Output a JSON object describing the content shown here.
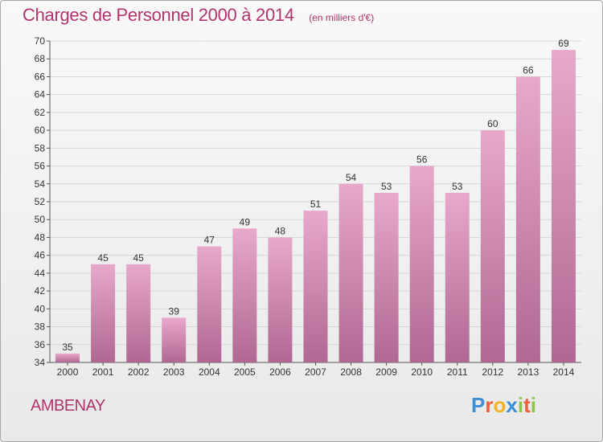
{
  "title": "Charges de Personnel 2000 à 2014",
  "unit": "(en milliers d'€)",
  "commune": "AMBENAY",
  "logo": {
    "text": "Proxiti",
    "letters": [
      {
        "ch": "P",
        "color": "#3b8fd4"
      },
      {
        "ch": "r",
        "color": "#e8603c"
      },
      {
        "ch": "o",
        "color": "#f0b429"
      },
      {
        "ch": "x",
        "color": "#3b8fd4"
      },
      {
        "ch": "i",
        "color": "#8cc63f"
      },
      {
        "ch": "t",
        "color": "#e8603c"
      },
      {
        "ch": "i",
        "color": "#8cc63f"
      }
    ]
  },
  "colors": {
    "accent": "#b0346e",
    "bar_top": "#e8a8cc",
    "bar_bottom": "#b06892",
    "grid": "#d7d7d7"
  },
  "chart_data": {
    "type": "bar",
    "categories": [
      "2000",
      "2001",
      "2002",
      "2003",
      "2004",
      "2005",
      "2006",
      "2007",
      "2008",
      "2009",
      "2010",
      "2011",
      "2012",
      "2013",
      "2014"
    ],
    "values": [
      35,
      45,
      45,
      39,
      47,
      49,
      48,
      51,
      54,
      53,
      56,
      53,
      60,
      66,
      69
    ],
    "ylim": [
      34,
      70
    ],
    "yticks": [
      34,
      36,
      38,
      40,
      42,
      44,
      46,
      48,
      50,
      52,
      54,
      56,
      58,
      60,
      62,
      64,
      66,
      68,
      70
    ],
    "grid": true,
    "data_labels": true
  }
}
